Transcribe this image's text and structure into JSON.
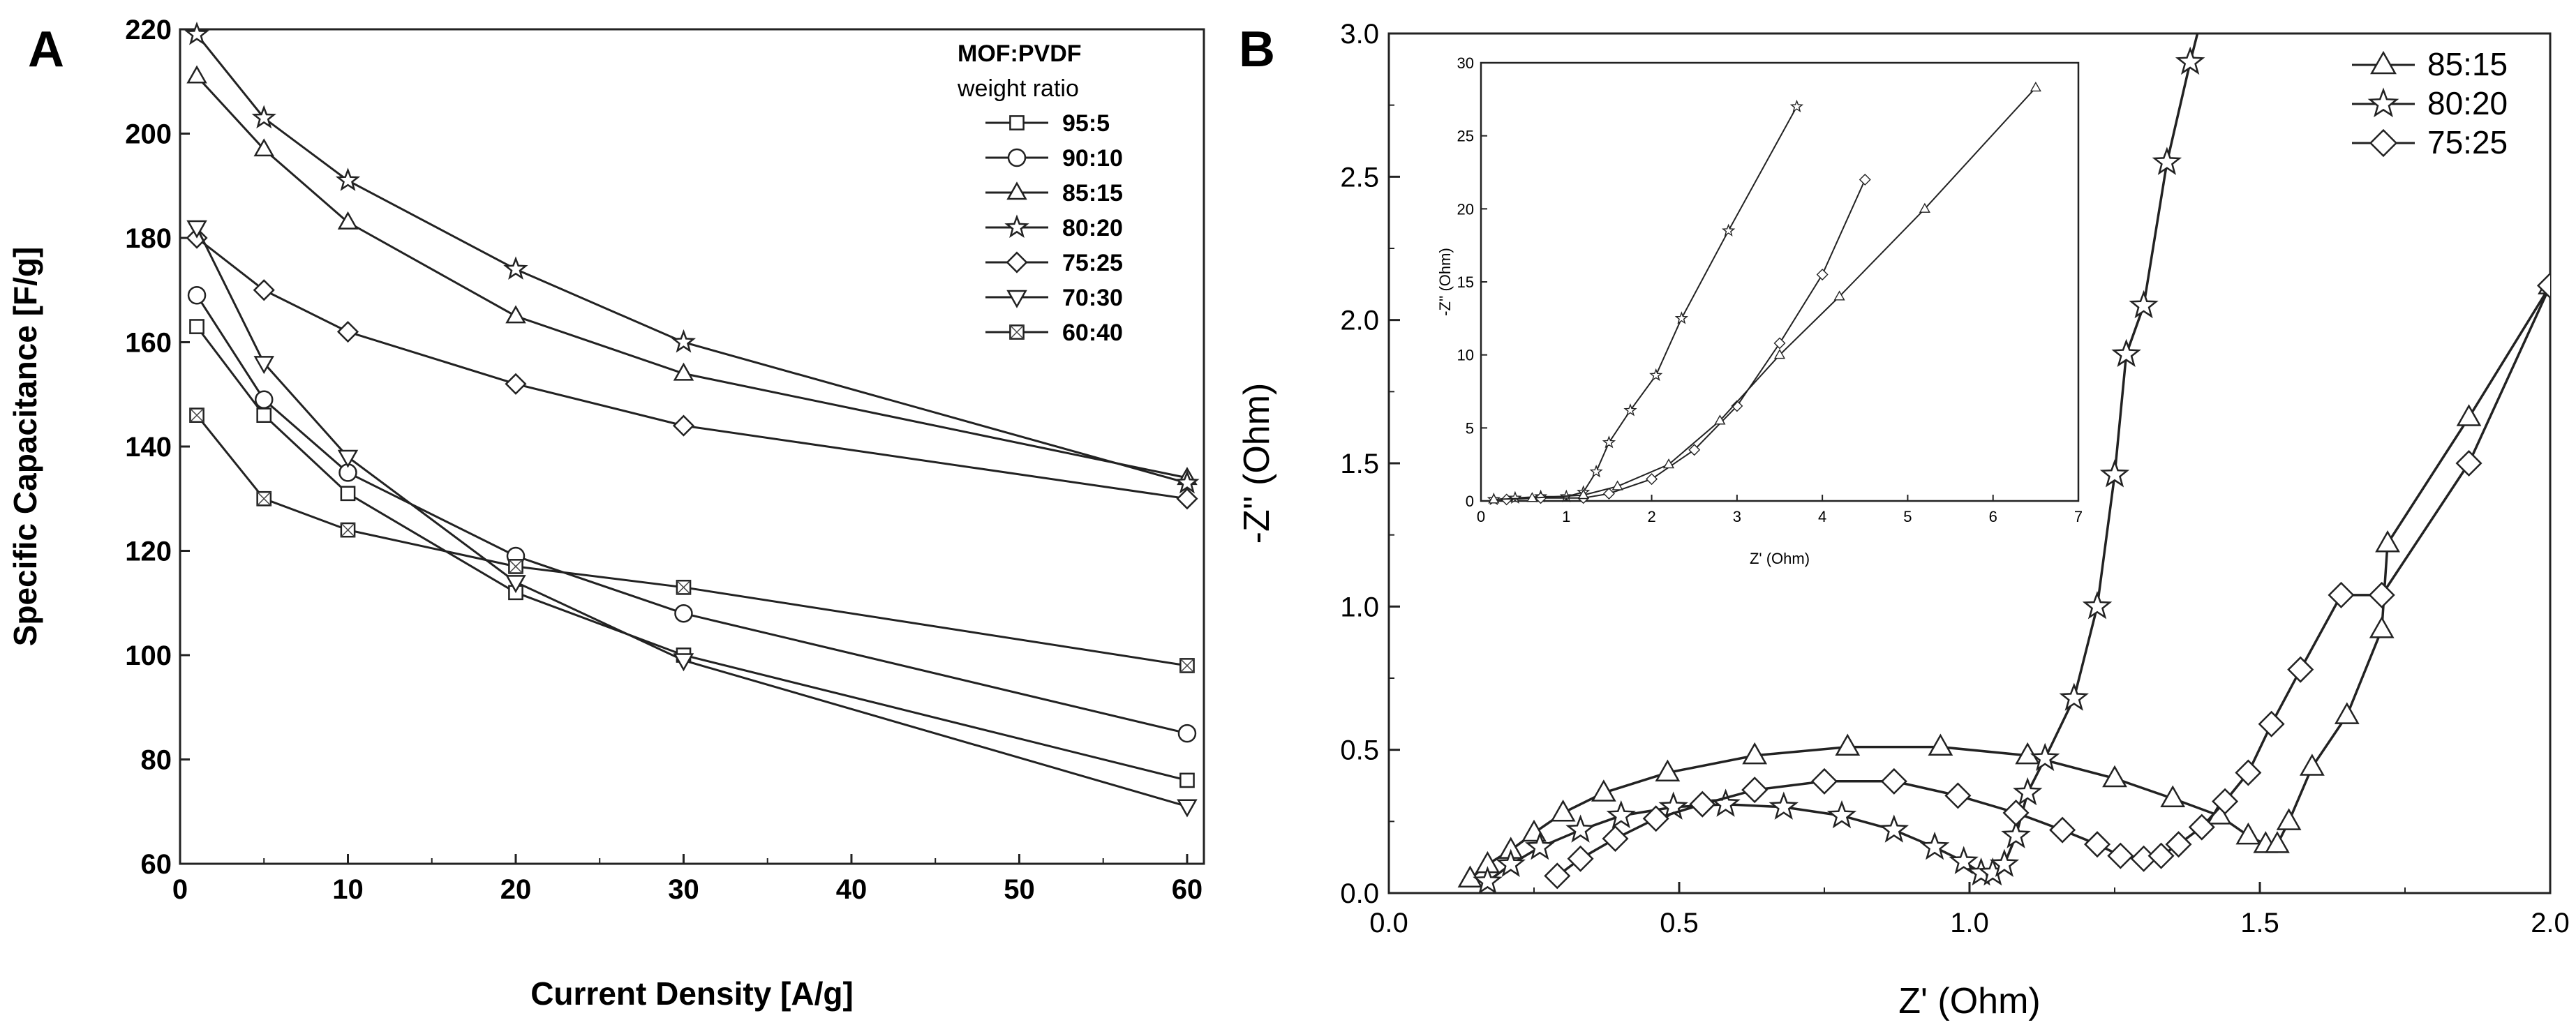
{
  "chart_data": [
    {
      "panel": "A",
      "type": "line",
      "xlabel": "Current Density [A/g]",
      "ylabel": "Specific Capacitance [F/g]",
      "xlim": [
        0,
        61
      ],
      "ylim": [
        60,
        220
      ],
      "xticks": [
        0,
        10,
        20,
        30,
        40,
        50,
        60
      ],
      "yticks": [
        60,
        80,
        100,
        120,
        140,
        160,
        180,
        200,
        220
      ],
      "legend_title": [
        "MOF:PVDF",
        "weight ratio"
      ],
      "legend_position": "top-right",
      "x": [
        1,
        5,
        10,
        20,
        30,
        60
      ],
      "series": [
        {
          "name": "95:5",
          "marker": "square",
          "values": [
            163,
            146,
            131,
            112,
            100,
            76
          ]
        },
        {
          "name": "90:10",
          "marker": "circle",
          "values": [
            169,
            149,
            135,
            119,
            108,
            85
          ]
        },
        {
          "name": "85:15",
          "marker": "triangle-up",
          "values": [
            211,
            197,
            183,
            165,
            154,
            134
          ]
        },
        {
          "name": "80:20",
          "marker": "star",
          "values": [
            219,
            203,
            191,
            174,
            160,
            133
          ]
        },
        {
          "name": "75:25",
          "marker": "diamond",
          "values": [
            180,
            170,
            162,
            152,
            144,
            130
          ]
        },
        {
          "name": "70:30",
          "marker": "triangle-down",
          "values": [
            182,
            156,
            138,
            114,
            99,
            71
          ]
        },
        {
          "name": "60:40",
          "marker": "square-x",
          "values": [
            146,
            130,
            124,
            117,
            113,
            98
          ]
        }
      ]
    },
    {
      "panel": "B",
      "type": "line",
      "xlabel": "Z' (Ohm)",
      "ylabel": "-Z'' (Ohm)",
      "xlim": [
        0,
        2.0
      ],
      "ylim": [
        0,
        3.0
      ],
      "xticks": [
        "0.0",
        "0.5",
        "1.0",
        "1.5",
        "2.0"
      ],
      "yticks": [
        "0.0",
        "0.5",
        "1.0",
        "1.5",
        "2.0",
        "2.5",
        "3.0"
      ],
      "legend_position": "top-right",
      "series": [
        {
          "name": "85:15",
          "marker": "triangle-up",
          "x": [
            0.14,
            0.17,
            0.21,
            0.25,
            0.3,
            0.37,
            0.48,
            0.63,
            0.79,
            0.95,
            1.1,
            1.25,
            1.35,
            1.43,
            1.48,
            1.51,
            1.53,
            1.55,
            1.59,
            1.65,
            1.71,
            1.72,
            1.86,
            2.0
          ],
          "y": [
            0.05,
            0.1,
            0.15,
            0.21,
            0.28,
            0.35,
            0.42,
            0.48,
            0.51,
            0.51,
            0.48,
            0.4,
            0.33,
            0.27,
            0.2,
            0.17,
            0.17,
            0.25,
            0.44,
            0.62,
            0.92,
            1.22,
            1.66,
            2.12
          ]
        },
        {
          "name": "80:20",
          "marker": "star",
          "x": [
            0.17,
            0.21,
            0.26,
            0.33,
            0.4,
            0.49,
            0.58,
            0.68,
            0.78,
            0.87,
            0.94,
            0.99,
            1.02,
            1.04,
            1.06,
            1.08,
            1.1,
            1.13,
            1.18,
            1.22,
            1.25,
            1.27,
            1.3,
            1.34,
            1.38
          ],
          "y": [
            0.04,
            0.1,
            0.16,
            0.22,
            0.27,
            0.3,
            0.31,
            0.3,
            0.27,
            0.22,
            0.16,
            0.11,
            0.07,
            0.07,
            0.1,
            0.2,
            0.35,
            0.47,
            0.68,
            1.0,
            1.46,
            1.88,
            2.05,
            2.55,
            2.9
          ]
        },
        {
          "name": "75:25",
          "marker": "diamond",
          "x": [
            0.29,
            0.33,
            0.39,
            0.46,
            0.54,
            0.63,
            0.75,
            0.87,
            0.98,
            1.08,
            1.16,
            1.22,
            1.26,
            1.3,
            1.33,
            1.36,
            1.4,
            1.44,
            1.48,
            1.52,
            1.57,
            1.64,
            1.71,
            1.86,
            2.0
          ],
          "y": [
            0.06,
            0.12,
            0.19,
            0.26,
            0.31,
            0.36,
            0.39,
            0.39,
            0.34,
            0.28,
            0.22,
            0.17,
            0.13,
            0.12,
            0.13,
            0.17,
            0.23,
            0.32,
            0.42,
            0.59,
            0.78,
            1.04,
            1.04,
            1.5,
            2.12
          ]
        }
      ]
    },
    {
      "panel": "B-inset",
      "type": "line",
      "xlabel": "Z' (Ohm)",
      "ylabel": "-Z'' (Ohm)",
      "xlim": [
        0,
        7
      ],
      "ylim": [
        0,
        30
      ],
      "xticks": [
        0,
        1,
        2,
        3,
        4,
        5,
        6,
        7
      ],
      "yticks": [
        0,
        5,
        10,
        15,
        20,
        25,
        30
      ],
      "series": [
        {
          "name": "80:20",
          "marker": "star",
          "x": [
            0.15,
            0.4,
            0.7,
            1.0,
            1.2,
            1.35,
            1.5,
            1.75,
            2.05,
            2.35,
            2.9,
            3.7
          ],
          "y": [
            0.1,
            0.2,
            0.3,
            0.3,
            0.6,
            2.0,
            4.0,
            6.2,
            8.6,
            12.5,
            18.5,
            27.0
          ]
        },
        {
          "name": "75:25",
          "marker": "diamond",
          "x": [
            0.3,
            0.7,
            1.2,
            1.5,
            2.0,
            2.5,
            3.0,
            3.5,
            4.0,
            4.5
          ],
          "y": [
            0.1,
            0.2,
            0.2,
            0.5,
            1.5,
            3.5,
            6.5,
            10.8,
            15.5,
            22.0
          ]
        },
        {
          "name": "85:15",
          "marker": "triangle-up",
          "x": [
            0.15,
            0.6,
            1.2,
            1.6,
            2.2,
            2.8,
            3.5,
            4.2,
            5.2,
            6.5
          ],
          "y": [
            0.1,
            0.2,
            0.4,
            1.0,
            2.5,
            5.5,
            10.0,
            14.0,
            20.0,
            28.3
          ]
        }
      ]
    }
  ],
  "labels": {
    "panelA": "A",
    "panelB": "B"
  }
}
